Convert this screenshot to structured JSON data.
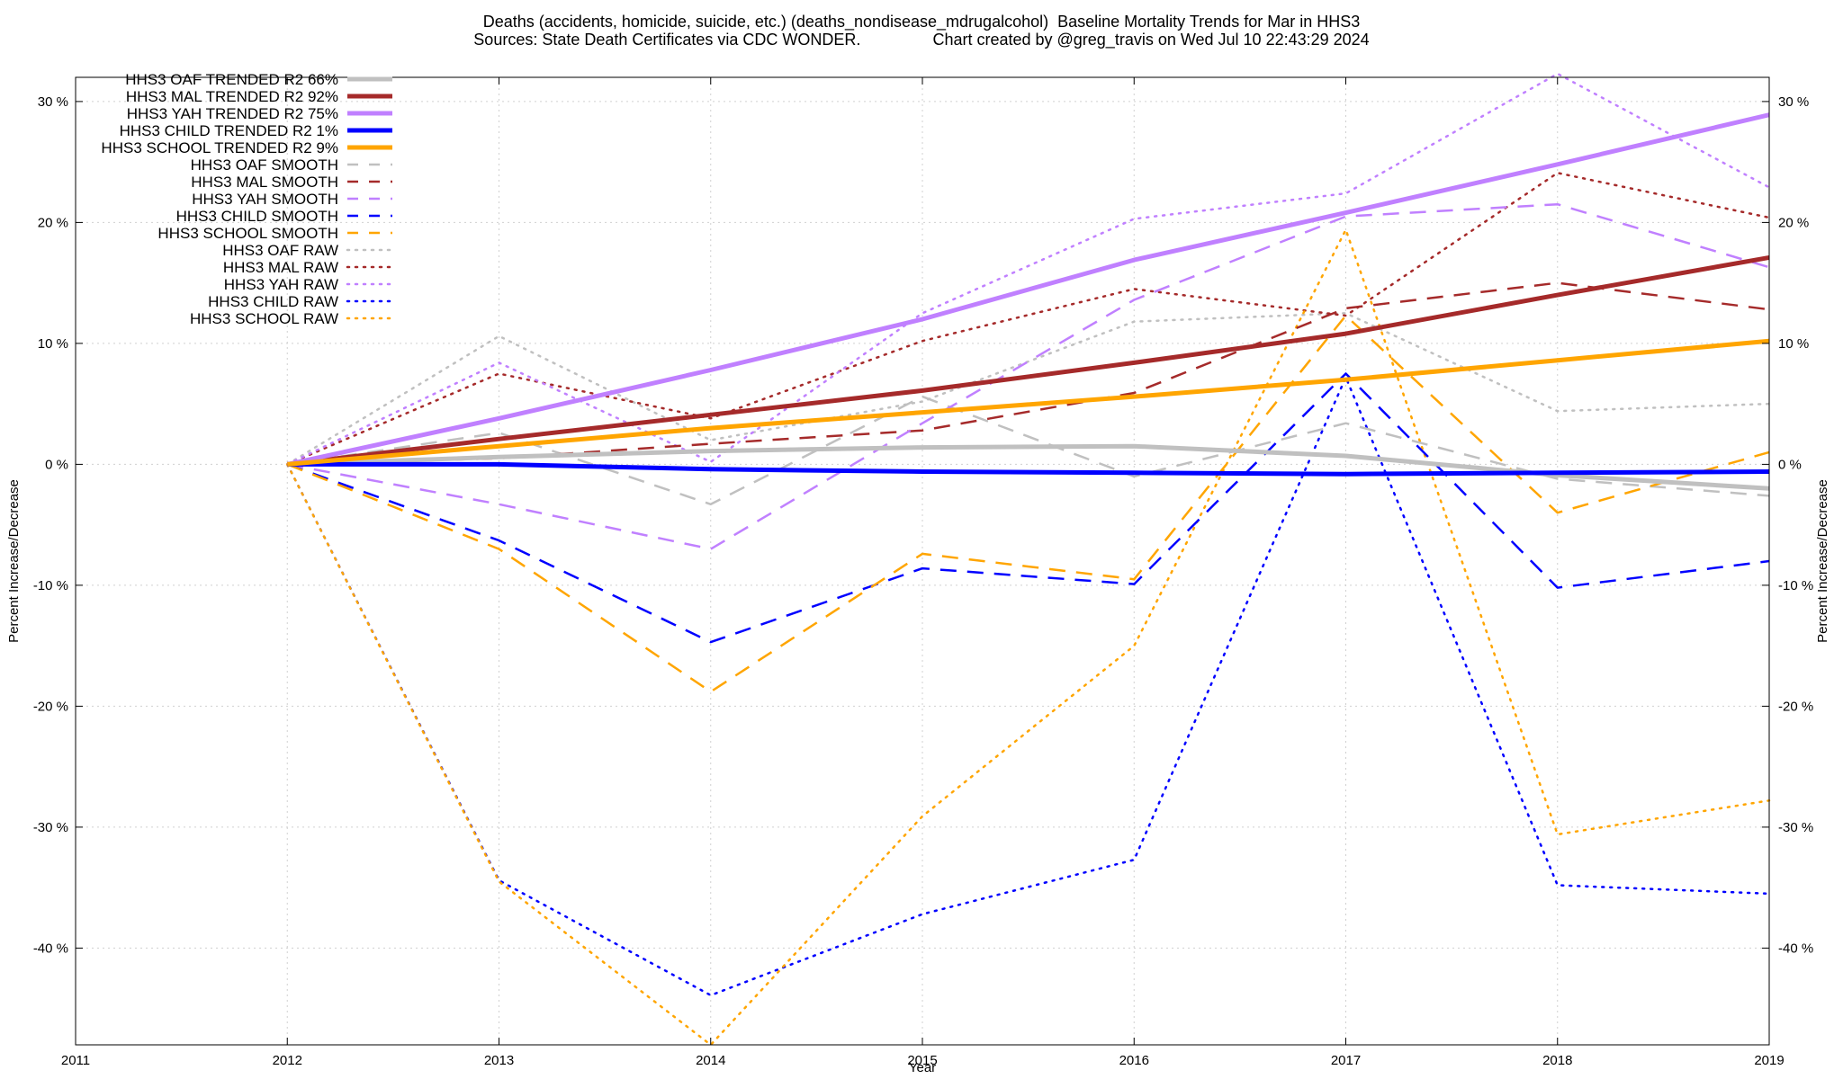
{
  "title_line1": "Deaths (accidents, homicide, suicide, etc.) (deaths_nondisease_mdrugalcohol)  Baseline Mortality Trends for Mar in HHS3",
  "title_line2": "Sources: State Death Certificates via CDC WONDER.                Chart created by @greg_travis on Wed Jul 10 22:43:29 2024",
  "chart_data": {
    "type": "line",
    "xlabel": "Year",
    "ylabel": "Percent Increase/Decrease",
    "ylabel_right": "Percent Increase/Decrease",
    "xlim": [
      2011,
      2019
    ],
    "ylim": [
      -48,
      32
    ],
    "x_ticks": [
      2011,
      2012,
      2013,
      2014,
      2015,
      2016,
      2017,
      2018,
      2019
    ],
    "y_ticks": [
      -40,
      -30,
      -20,
      -10,
      0,
      10,
      20,
      30
    ],
    "y_tick_labels": [
      "-40 %",
      "-30 %",
      "-20 %",
      "-10 %",
      "0 %",
      "10 %",
      "20 %",
      "30 %"
    ],
    "grid": true,
    "legend_position": "top-left",
    "series": [
      {
        "name": "HHS3 OAF TRENDED R2  66%",
        "color": "#c0c0c0",
        "style": "solid",
        "width": 5,
        "x": [
          2012,
          2013,
          2014,
          2015,
          2016,
          2017,
          2018,
          2019
        ],
        "y": [
          0,
          0.6,
          1.1,
          1.4,
          1.5,
          0.7,
          -0.9,
          -2.0
        ]
      },
      {
        "name": "HHS3 MAL TRENDED R2  92%",
        "color": "#a52a2a",
        "style": "solid",
        "width": 5,
        "x": [
          2012,
          2013,
          2014,
          2015,
          2016,
          2017,
          2018,
          2019
        ],
        "y": [
          0,
          2.1,
          4.1,
          6.1,
          8.4,
          10.8,
          14.0,
          17.1
        ]
      },
      {
        "name": "HHS3 YAH TRENDED R2  75%",
        "color": "#c080ff",
        "style": "solid",
        "width": 5,
        "x": [
          2012,
          2013,
          2014,
          2015,
          2016,
          2017,
          2018,
          2019
        ],
        "y": [
          0,
          3.8,
          7.8,
          12.0,
          16.9,
          20.8,
          24.8,
          28.9
        ]
      },
      {
        "name": "HHS3 CHILD TRENDED R2  1%",
        "color": "#0000ff",
        "style": "solid",
        "width": 5,
        "x": [
          2012,
          2013,
          2014,
          2015,
          2016,
          2017,
          2018,
          2019
        ],
        "y": [
          0,
          0,
          -0.4,
          -0.6,
          -0.7,
          -0.8,
          -0.7,
          -0.6
        ]
      },
      {
        "name": "HHS3 SCHOOL TRENDED R2  9%",
        "color": "#ffa500",
        "style": "solid",
        "width": 5,
        "x": [
          2012,
          2013,
          2014,
          2015,
          2016,
          2017,
          2018,
          2019
        ],
        "y": [
          0,
          1.5,
          3.0,
          4.3,
          5.6,
          7.0,
          8.6,
          10.2
        ]
      },
      {
        "name": "HHS3 OAF SMOOTH",
        "color": "#c0c0c0",
        "style": "dashed",
        "width": 2.5,
        "x": [
          2012,
          2013,
          2014,
          2015,
          2016,
          2017,
          2018,
          2019
        ],
        "y": [
          0,
          2.6,
          -3.3,
          5.6,
          -1.0,
          3.4,
          -1.2,
          -2.6
        ]
      },
      {
        "name": "HHS3 MAL SMOOTH",
        "color": "#a52a2a",
        "style": "dashed",
        "width": 2.5,
        "x": [
          2012,
          2013,
          2014,
          2015,
          2016,
          2017,
          2018,
          2019
        ],
        "y": [
          0,
          0.5,
          1.7,
          2.8,
          5.9,
          12.9,
          15.0,
          12.8
        ]
      },
      {
        "name": "HHS3 YAH SMOOTH",
        "color": "#c080ff",
        "style": "dashed",
        "width": 2.5,
        "x": [
          2012,
          2013,
          2014,
          2015,
          2016,
          2017,
          2018,
          2019
        ],
        "y": [
          0,
          -3.3,
          -7.0,
          3.4,
          13.6,
          20.5,
          21.5,
          16.3
        ]
      },
      {
        "name": "HHS3 CHILD SMOOTH",
        "color": "#0000ff",
        "style": "dashed",
        "width": 2.5,
        "x": [
          2012,
          2013,
          2014,
          2015,
          2016,
          2017,
          2018,
          2019
        ],
        "y": [
          0,
          -6.3,
          -14.7,
          -8.6,
          -9.9,
          7.5,
          -10.2,
          -8.0
        ]
      },
      {
        "name": "HHS3 SCHOOL SMOOTH",
        "color": "#ffa500",
        "style": "dashed",
        "width": 2.5,
        "x": [
          2012,
          2013,
          2014,
          2015,
          2016,
          2017,
          2018,
          2019
        ],
        "y": [
          0,
          -7.0,
          -18.8,
          -7.4,
          -9.5,
          12.3,
          -4.0,
          1.0
        ]
      },
      {
        "name": "HHS3 OAF RAW",
        "color": "#c0c0c0",
        "style": "dotted",
        "width": 2.5,
        "x": [
          2012,
          2013,
          2014,
          2015,
          2016,
          2017,
          2018,
          2019
        ],
        "y": [
          0,
          10.6,
          2.0,
          5.2,
          11.8,
          12.5,
          4.4,
          5.0
        ]
      },
      {
        "name": "HHS3 MAL RAW",
        "color": "#a52a2a",
        "style": "dotted",
        "width": 2.5,
        "x": [
          2012,
          2013,
          2014,
          2015,
          2016,
          2017,
          2018,
          2019
        ],
        "y": [
          0,
          7.5,
          3.8,
          10.2,
          14.5,
          12.3,
          24.1,
          20.4
        ]
      },
      {
        "name": "HHS3 YAH RAW",
        "color": "#c080ff",
        "style": "dotted",
        "width": 2.5,
        "x": [
          2012,
          2013,
          2014,
          2015,
          2016,
          2017,
          2018,
          2019
        ],
        "y": [
          0,
          8.4,
          0.2,
          12.5,
          20.3,
          22.4,
          32.3,
          22.9
        ]
      },
      {
        "name": "HHS3 CHILD RAW",
        "color": "#0000ff",
        "style": "dotted",
        "width": 2.5,
        "x": [
          2012,
          2013,
          2014,
          2015,
          2016,
          2017,
          2018,
          2019
        ],
        "y": [
          0,
          -34.4,
          -43.9,
          -37.2,
          -32.7,
          7.2,
          -34.8,
          -35.5
        ]
      },
      {
        "name": "HHS3 SCHOOL RAW",
        "color": "#ffa500",
        "style": "dotted",
        "width": 2.5,
        "x": [
          2012,
          2013,
          2014,
          2015,
          2016,
          2017,
          2018,
          2019
        ],
        "y": [
          0,
          -34.5,
          -48.0,
          -29.1,
          -15.0,
          19.4,
          -30.6,
          -27.8
        ]
      }
    ]
  }
}
